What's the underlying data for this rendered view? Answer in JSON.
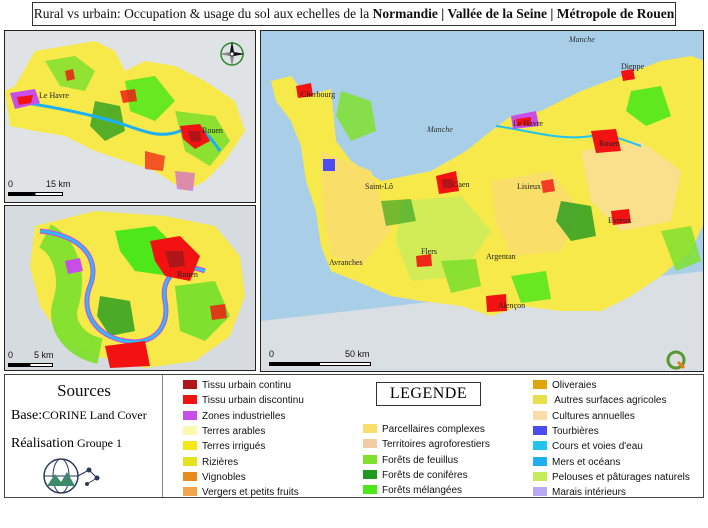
{
  "title": {
    "prefix": "Rural vs urbain: Occupation & usage du sol aux echelles de la ",
    "part1": "Normandie",
    "sep1": " | ",
    "part2": "Vallée de la Seine",
    "sep2": " | ",
    "part3": "Métropole de Rouen"
  },
  "maps": {
    "seine": {
      "labels": {
        "le_havre": "Le Havre",
        "rouen": "Rouen"
      },
      "scale": {
        "zero": "0",
        "dist": "15 km"
      }
    },
    "rouen": {
      "labels": {
        "rouen": "Rouen"
      },
      "scale": {
        "zero": "0",
        "dist": "5 km"
      }
    },
    "normandie": {
      "sea_labels": {
        "top": "Manche",
        "bay": "Manche"
      },
      "cities": {
        "dieppe": "Dieppe",
        "cherbourg": "Cherbourg",
        "le_havre": "Le Havre",
        "rouen": "Rouen",
        "caen": "Caen",
        "saint_lo": "Saint-Lô",
        "lisieux": "Lisieux",
        "evreux": "Evreux",
        "flers": "Flers",
        "argentan": "Argentan",
        "avranches": "Avranches",
        "alencon": "Alençon"
      },
      "scale": {
        "zero": "0",
        "dist": "50 km"
      }
    }
  },
  "sources": {
    "title": "Sources",
    "base_label": "Base:",
    "base_value": "CORINE Land Cover",
    "realisation_label": "Réalisation",
    "realisation_value": " Groupe 1"
  },
  "legend": {
    "title": "LEGENDE",
    "col1": [
      {
        "label": "Tissu urbain continu",
        "color": "#b01518"
      },
      {
        "label": "Tissu urbain discontinu",
        "color": "#f21212"
      },
      {
        "label": "Zones industrielles",
        "color": "#c94ee8"
      },
      {
        "label": "Terres arables",
        "color": "#fbf9b0"
      },
      {
        "label": "Terres irrigués",
        "color": "#f7e614"
      },
      {
        "label": "Rizières",
        "color": "#e3e21b"
      },
      {
        "label": "Vignobles",
        "color": "#e8891c"
      },
      {
        "label": "Vergers et petits fruits",
        "color": "#f2a54a"
      }
    ],
    "col2": [
      {
        "label": "Parcellaires complexes",
        "color": "#f9df6a"
      },
      {
        "label": "Territoires agroforestiers",
        "color": "#f2cba3"
      },
      {
        "label": "Forêts de feuillus",
        "color": "#7fe02e"
      },
      {
        "label": "Forêts de conifères",
        "color": "#1f9a1d"
      },
      {
        "label": "Forêts mélangées",
        "color": "#4ee81a"
      }
    ],
    "col3": [
      {
        "label": "Oliveraies",
        "color": "#e0a40f"
      },
      {
        "label": " Autres surfaces agricoles",
        "color": "#e8e04a"
      },
      {
        "label": "Cultures annuelles",
        "color": "#f9dca8"
      },
      {
        "label": "Tourbières",
        "color": "#4b4df0"
      },
      {
        "label": "Cours et voies d'eau",
        "color": "#22c3ee"
      },
      {
        "label": "Mers et océans",
        "color": "#1fb0f2"
      },
      {
        "label": "Pelouses et pâturages naturels",
        "color": "#c7ec5a"
      },
      {
        "label": "Marais intérieurs",
        "color": "#b7a9f2"
      }
    ]
  }
}
